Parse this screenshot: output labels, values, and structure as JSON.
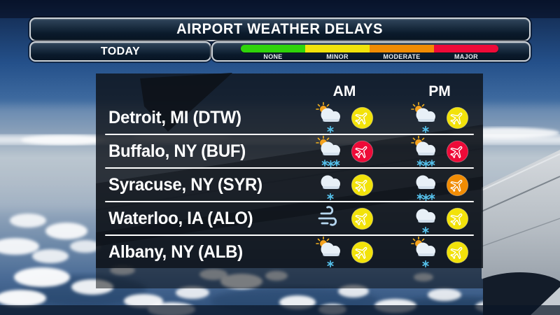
{
  "header": {
    "title": "AIRPORT WEATHER DELAYS",
    "timeframe": "TODAY"
  },
  "legend": {
    "levels": [
      {
        "label": "NONE",
        "color": "#2fd40a"
      },
      {
        "label": "MINOR",
        "color": "#f2e20a"
      },
      {
        "label": "MODERATE",
        "color": "#f18c04"
      },
      {
        "label": "MAJOR",
        "color": "#ee0a38"
      }
    ]
  },
  "delay_colors": {
    "none": "#2fd40a",
    "minor": "#f2e20a",
    "moderate": "#f18c04",
    "major": "#ee0a38"
  },
  "table": {
    "columns": [
      "AM",
      "PM"
    ],
    "rows": [
      {
        "city": "Detroit, MI (DTW)",
        "am": {
          "weather": "partly-cloudy-light-snow",
          "delay": "minor"
        },
        "pm": {
          "weather": "partly-cloudy-light-snow",
          "delay": "minor"
        }
      },
      {
        "city": "Buffalo, NY (BUF)",
        "am": {
          "weather": "partly-cloudy-heavy-snow",
          "delay": "major"
        },
        "pm": {
          "weather": "partly-cloudy-heavy-snow",
          "delay": "major"
        }
      },
      {
        "city": "Syracuse, NY (SYR)",
        "am": {
          "weather": "cloudy-light-snow",
          "delay": "minor"
        },
        "pm": {
          "weather": "cloudy-heavy-snow",
          "delay": "moderate"
        }
      },
      {
        "city": "Waterloo, IA (ALO)",
        "am": {
          "weather": "windy",
          "delay": "minor"
        },
        "pm": {
          "weather": "cloudy-light-snow",
          "delay": "minor"
        }
      },
      {
        "city": "Albany, NY (ALB)",
        "am": {
          "weather": "partly-cloudy-light-snow",
          "delay": "minor"
        },
        "pm": {
          "weather": "partly-cloudy-light-snow",
          "delay": "minor"
        }
      }
    ]
  }
}
